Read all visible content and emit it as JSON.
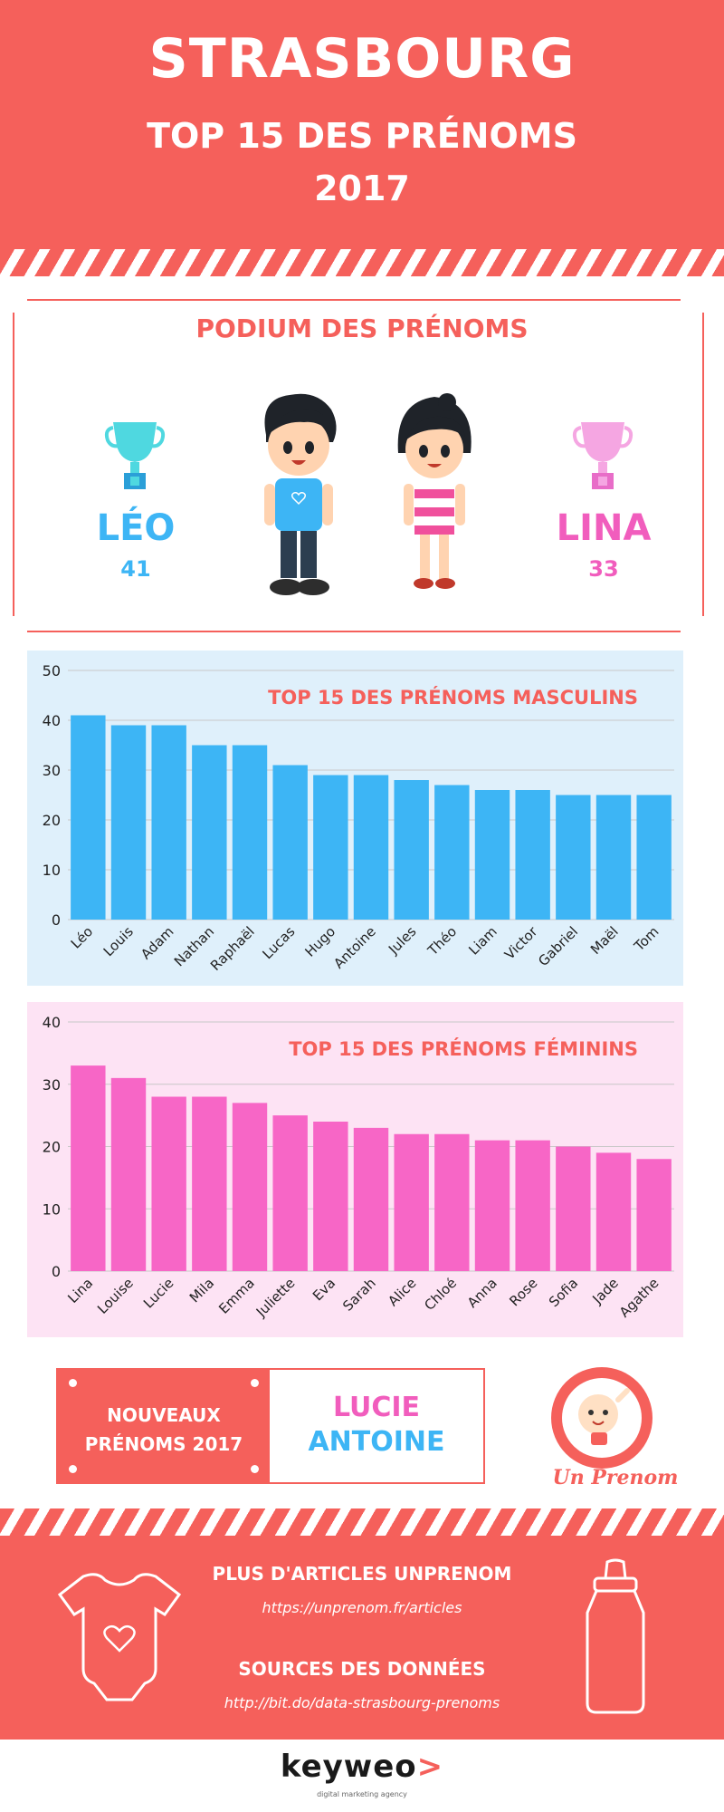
{
  "header": {
    "city": "STRASBOURG",
    "subtitle": "TOP 15 DES PRÉNOMS",
    "year": "2017",
    "background": "#f5605b"
  },
  "podium": {
    "title": "PODIUM DES PRÉNOMS",
    "boy": {
      "name": "LÉO",
      "count": "41",
      "color": "#3db5f5",
      "icon": "trophy-icon"
    },
    "girl": {
      "name": "LINA",
      "count": "33",
      "color": "#f15dbd",
      "icon": "trophy-icon"
    }
  },
  "chart_data": [
    {
      "type": "bar",
      "title": "TOP 15 DES PRÉNOMS MASCULINS",
      "categories": [
        "Léo",
        "Louis",
        "Adam",
        "Nathan",
        "Raphaël",
        "Lucas",
        "Hugo",
        "Antoine",
        "Jules",
        "Théo",
        "Liam",
        "Victor",
        "Gabriel",
        "Maël",
        "Tom"
      ],
      "values": [
        41,
        39,
        39,
        35,
        35,
        31,
        29,
        29,
        28,
        27,
        26,
        26,
        25,
        25,
        25
      ],
      "ylim": [
        0,
        50
      ],
      "yticks": [
        0,
        10,
        20,
        30,
        40,
        50
      ],
      "grid": true,
      "bar_color": "#3db5f5",
      "background": "#dff0fb"
    },
    {
      "type": "bar",
      "title": "TOP 15 DES PRÉNOMS FÉMININS",
      "categories": [
        "Lina",
        "Louise",
        "Lucie",
        "Mila",
        "Emma",
        "Juliette",
        "Eva",
        "Sarah",
        "Alice",
        "Chloé",
        "Anna",
        "Rose",
        "Sofia",
        "Jade",
        "Agathe"
      ],
      "values": [
        33,
        31,
        28,
        28,
        27,
        25,
        24,
        23,
        22,
        22,
        21,
        21,
        20,
        19,
        18
      ],
      "ylim": [
        0,
        40
      ],
      "yticks": [
        0,
        10,
        20,
        30,
        40
      ],
      "grid": true,
      "bar_color": "#f766c6",
      "background": "#fde3f4"
    }
  ],
  "new_names": {
    "label": "NOUVEAUX PRÉNOMS 2017",
    "girl": "LUCIE",
    "boy": "ANTOINE"
  },
  "brand": {
    "name": "Un Prenom"
  },
  "footer": {
    "articles_heading": "PLUS D'ARTICLES UNPRENOM",
    "articles_url": "https://unprenom.fr/articles",
    "sources_heading": "SOURCES DES DONNÉES",
    "sources_url": "http://bit.do/data-strasbourg-prenoms"
  },
  "keyweo": {
    "logo": "keyweo",
    "arrow": ">",
    "tagline": "digital marketing agency"
  }
}
